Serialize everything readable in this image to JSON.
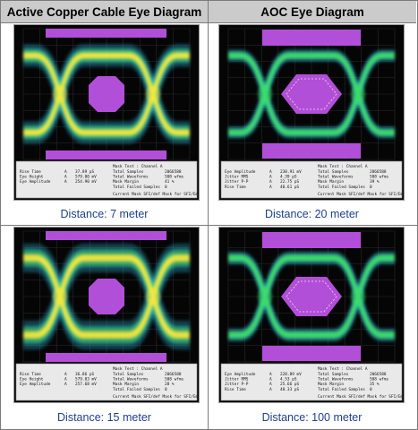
{
  "headers": {
    "left": "Active Copper Cable Eye Diagram",
    "right": "AOC Eye Diagram"
  },
  "panels": [
    {
      "caption": "Distance: 7 meter",
      "mask_title": "Mask Test : Channel A",
      "table_left": [
        {
          "label": "Rise Time",
          "ch": "A",
          "value": "37.89 pS"
        },
        {
          "label": "Eye Height",
          "ch": "A",
          "value": "579.00 mV"
        },
        {
          "label": "Eye Amplitude",
          "ch": "A",
          "value": "254.90 mV"
        }
      ],
      "table_right": [
        {
          "label": "Total Samples",
          "value": "2066588"
        },
        {
          "label": "Total Waveforms",
          "value": "508 wfms"
        },
        {
          "label": "Mask Margin",
          "value": "41 %"
        },
        {
          "label": "Total Failed Samples",
          "value": "0"
        }
      ],
      "footer": "Current Mask  SFI/def  Mask for SFI/Eme..."
    },
    {
      "caption": "Distance: 20 meter",
      "mask_title": "Mask Test : Channel A",
      "table_left": [
        {
          "label": "Eye Amplitude",
          "ch": "A",
          "value": "230.91 mV"
        },
        {
          "label": "Jitter RMS",
          "ch": "A",
          "value": "4.39 pS"
        },
        {
          "label": "Jitter P-P",
          "ch": "A",
          "value": "22.75 pS"
        },
        {
          "label": "Rise Time",
          "ch": "A",
          "value": "40.61 pS"
        }
      ],
      "table_right": [
        {
          "label": "Total Samples",
          "value": "2066588"
        },
        {
          "label": "Total Waveforms",
          "value": "508 wfms"
        },
        {
          "label": "Mask Margin",
          "value": "39 %"
        },
        {
          "label": "Total Failed Samples",
          "value": "0"
        }
      ],
      "footer": "Current Mask  SFI/def  Mask for SFI/Eme..."
    },
    {
      "caption": "Distance: 15 meter",
      "mask_title": "Mask Test : Channel A",
      "table_left": [
        {
          "label": "Rise Time",
          "ch": "A",
          "value": "36.86 pS"
        },
        {
          "label": "Eye Height",
          "ch": "A",
          "value": "579.03 mV"
        },
        {
          "label": "Eye Amplitude",
          "ch": "A",
          "value": "257.68 mV"
        }
      ],
      "table_right": [
        {
          "label": "Total Samples",
          "value": "2066588"
        },
        {
          "label": "Total Waveforms",
          "value": "508 wfms"
        },
        {
          "label": "Mask Margin",
          "value": "28 %"
        },
        {
          "label": "Total Failed Samples",
          "value": "0"
        }
      ],
      "footer": "Current Mask  SFI/def  Mask for SFI/Eme..."
    },
    {
      "caption": "Distance: 100 meter",
      "mask_title": "Mask Test : Channel A",
      "table_left": [
        {
          "label": "Eye Amplitude",
          "ch": "A",
          "value": "228.89 mV"
        },
        {
          "label": "Jitter RMS",
          "ch": "A",
          "value": "4.53 pS"
        },
        {
          "label": "Jitter P-P",
          "ch": "A",
          "value": "25.66 pS"
        },
        {
          "label": "Rise Time",
          "ch": "A",
          "value": "48.33 pS"
        }
      ],
      "table_right": [
        {
          "label": "Total Samples",
          "value": "2066588"
        },
        {
          "label": "Total Waveforms",
          "value": "508 wfms"
        },
        {
          "label": "Mask Margin",
          "value": "35 %"
        },
        {
          "label": "Total Failed Samples",
          "value": "0"
        }
      ],
      "footer": "Current Mask  SFI/def  Mask for SFI/Eme..."
    }
  ],
  "colors": {
    "trace_hot": "#f7e93a",
    "trace_mid": "#3ddc6a",
    "trace_cool": "#27a7c9",
    "mask": "#b24fd8",
    "caption": "#1f3f88",
    "header_bg": "#cbcbcb"
  }
}
